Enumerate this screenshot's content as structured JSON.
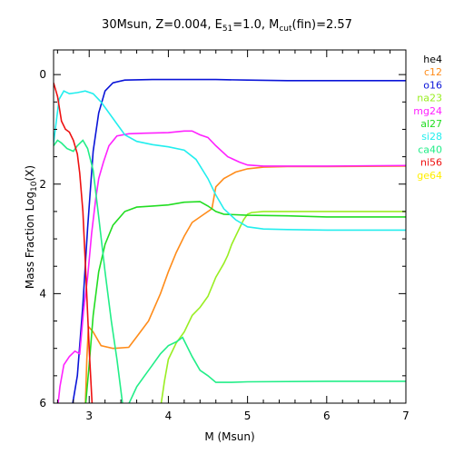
{
  "chart_data": {
    "type": "line",
    "title": {
      "prefix": "30Msun, Z=0.004, E",
      "e_sub": "51",
      "middle": "=1.0, M",
      "m_sub": "cut",
      "suffix": "(fin)=2.57"
    },
    "xlabel": "M (Msun)",
    "ylabel": {
      "prefix": "Mass Fraction Log",
      "sub": "10",
      "suffix": "(X)"
    },
    "xlim": [
      2.55,
      7.0
    ],
    "ylim": [
      -6.0,
      0.45
    ],
    "x_ticks": [
      3,
      4,
      5,
      6,
      7
    ],
    "y_ticks": [
      0,
      -2,
      -4,
      -6
    ],
    "y_tick_labels": [
      "0",
      "2",
      "4",
      "6"
    ],
    "legend_position": "outside-right",
    "series": [
      {
        "name": "he4",
        "color": "#000000",
        "points": []
      },
      {
        "name": "c12",
        "color": "#ff8c1a",
        "points": [
          [
            2.95,
            -6.1
          ],
          [
            2.97,
            -5.2
          ],
          [
            2.99,
            -4.6
          ],
          [
            3.05,
            -4.7
          ],
          [
            3.15,
            -4.95
          ],
          [
            3.3,
            -5.0
          ],
          [
            3.5,
            -4.98
          ],
          [
            3.62,
            -4.75
          ],
          [
            3.75,
            -4.5
          ],
          [
            3.9,
            -4.0
          ],
          [
            4.0,
            -3.6
          ],
          [
            4.1,
            -3.25
          ],
          [
            4.2,
            -2.95
          ],
          [
            4.3,
            -2.7
          ],
          [
            4.45,
            -2.55
          ],
          [
            4.55,
            -2.45
          ],
          [
            4.6,
            -2.05
          ],
          [
            4.7,
            -1.9
          ],
          [
            4.85,
            -1.78
          ],
          [
            5.0,
            -1.72
          ],
          [
            5.2,
            -1.69
          ],
          [
            5.5,
            -1.68
          ],
          [
            6.0,
            -1.68
          ],
          [
            7.0,
            -1.67
          ]
        ]
      },
      {
        "name": "o16",
        "color": "#0a14d8",
        "points": [
          [
            2.78,
            -6.1
          ],
          [
            2.85,
            -5.5
          ],
          [
            2.92,
            -4.2
          ],
          [
            2.98,
            -2.8
          ],
          [
            3.05,
            -1.4
          ],
          [
            3.12,
            -0.7
          ],
          [
            3.2,
            -0.3
          ],
          [
            3.3,
            -0.15
          ],
          [
            3.45,
            -0.1
          ],
          [
            3.8,
            -0.09
          ],
          [
            4.2,
            -0.09
          ],
          [
            4.6,
            -0.09
          ],
          [
            5.0,
            -0.1
          ],
          [
            5.5,
            -0.11
          ],
          [
            6.0,
            -0.11
          ],
          [
            6.5,
            -0.11
          ],
          [
            7.0,
            -0.11
          ]
        ]
      },
      {
        "name": "na23",
        "color": "#99ee22",
        "points": [
          [
            3.9,
            -6.1
          ],
          [
            3.95,
            -5.6
          ],
          [
            4.0,
            -5.2
          ],
          [
            4.1,
            -4.9
          ],
          [
            4.2,
            -4.7
          ],
          [
            4.3,
            -4.4
          ],
          [
            4.4,
            -4.25
          ],
          [
            4.5,
            -4.05
          ],
          [
            4.6,
            -3.7
          ],
          [
            4.7,
            -3.45
          ],
          [
            4.75,
            -3.3
          ],
          [
            4.8,
            -3.1
          ],
          [
            4.85,
            -2.95
          ],
          [
            4.9,
            -2.8
          ],
          [
            4.95,
            -2.65
          ],
          [
            5.0,
            -2.55
          ],
          [
            5.05,
            -2.52
          ],
          [
            5.2,
            -2.5
          ],
          [
            5.5,
            -2.5
          ],
          [
            6.0,
            -2.5
          ],
          [
            7.0,
            -2.5
          ]
        ]
      },
      {
        "name": "mg24",
        "color": "#ff22ff",
        "points": [
          [
            2.6,
            -6.1
          ],
          [
            2.63,
            -5.7
          ],
          [
            2.68,
            -5.3
          ],
          [
            2.75,
            -5.15
          ],
          [
            2.82,
            -5.05
          ],
          [
            2.88,
            -5.1
          ],
          [
            2.93,
            -4.3
          ],
          [
            2.98,
            -3.7
          ],
          [
            3.03,
            -2.9
          ],
          [
            3.08,
            -2.3
          ],
          [
            3.12,
            -1.9
          ],
          [
            3.18,
            -1.6
          ],
          [
            3.25,
            -1.3
          ],
          [
            3.35,
            -1.12
          ],
          [
            3.5,
            -1.08
          ],
          [
            3.7,
            -1.07
          ],
          [
            4.0,
            -1.06
          ],
          [
            4.2,
            -1.03
          ],
          [
            4.3,
            -1.03
          ],
          [
            4.4,
            -1.1
          ],
          [
            4.5,
            -1.15
          ],
          [
            4.6,
            -1.3
          ],
          [
            4.75,
            -1.5
          ],
          [
            4.9,
            -1.6
          ],
          [
            5.0,
            -1.65
          ],
          [
            5.2,
            -1.67
          ],
          [
            6.0,
            -1.67
          ],
          [
            7.0,
            -1.66
          ]
        ]
      },
      {
        "name": "al27",
        "color": "#22dd22",
        "points": [
          [
            2.95,
            -6.1
          ],
          [
            3.0,
            -5.3
          ],
          [
            3.05,
            -4.4
          ],
          [
            3.12,
            -3.6
          ],
          [
            3.2,
            -3.1
          ],
          [
            3.3,
            -2.75
          ],
          [
            3.45,
            -2.5
          ],
          [
            3.6,
            -2.42
          ],
          [
            3.8,
            -2.4
          ],
          [
            4.0,
            -2.38
          ],
          [
            4.2,
            -2.33
          ],
          [
            4.4,
            -2.32
          ],
          [
            4.5,
            -2.4
          ],
          [
            4.6,
            -2.5
          ],
          [
            4.7,
            -2.55
          ],
          [
            5.0,
            -2.57
          ],
          [
            5.5,
            -2.58
          ],
          [
            6.0,
            -2.6
          ],
          [
            7.0,
            -2.6
          ]
        ]
      },
      {
        "name": "si28",
        "color": "#22eeee",
        "points": [
          [
            2.55,
            -1.25
          ],
          [
            2.62,
            -0.45
          ],
          [
            2.68,
            -0.3
          ],
          [
            2.75,
            -0.35
          ],
          [
            2.85,
            -0.33
          ],
          [
            2.95,
            -0.3
          ],
          [
            3.05,
            -0.35
          ],
          [
            3.15,
            -0.5
          ],
          [
            3.3,
            -0.8
          ],
          [
            3.45,
            -1.1
          ],
          [
            3.6,
            -1.22
          ],
          [
            3.8,
            -1.28
          ],
          [
            4.0,
            -1.32
          ],
          [
            4.2,
            -1.38
          ],
          [
            4.35,
            -1.55
          ],
          [
            4.5,
            -1.9
          ],
          [
            4.6,
            -2.2
          ],
          [
            4.7,
            -2.45
          ],
          [
            4.85,
            -2.65
          ],
          [
            5.0,
            -2.78
          ],
          [
            5.2,
            -2.82
          ],
          [
            5.5,
            -2.83
          ],
          [
            6.0,
            -2.84
          ],
          [
            7.0,
            -2.84
          ]
        ]
      },
      {
        "name": "ca40",
        "color": "#22ee88",
        "points": [
          [
            2.55,
            -1.3
          ],
          [
            2.6,
            -1.2
          ],
          [
            2.65,
            -1.25
          ],
          [
            2.72,
            -1.35
          ],
          [
            2.8,
            -1.4
          ],
          [
            2.85,
            -1.3
          ],
          [
            2.92,
            -1.2
          ],
          [
            2.98,
            -1.35
          ],
          [
            3.05,
            -1.75
          ],
          [
            3.12,
            -2.6
          ],
          [
            3.2,
            -3.6
          ],
          [
            3.28,
            -4.5
          ],
          [
            3.35,
            -5.2
          ],
          [
            3.42,
            -6.0
          ],
          [
            3.47,
            -6.1
          ],
          [
            3.52,
            -5.95
          ],
          [
            3.6,
            -5.7
          ],
          [
            3.7,
            -5.5
          ],
          [
            3.8,
            -5.3
          ],
          [
            3.9,
            -5.1
          ],
          [
            4.0,
            -4.95
          ],
          [
            4.1,
            -4.88
          ],
          [
            4.18,
            -4.8
          ],
          [
            4.3,
            -5.15
          ],
          [
            4.4,
            -5.4
          ],
          [
            4.5,
            -5.5
          ],
          [
            4.6,
            -5.62
          ],
          [
            4.8,
            -5.62
          ],
          [
            5.0,
            -5.61
          ],
          [
            6.0,
            -5.6
          ],
          [
            7.0,
            -5.6
          ]
        ]
      },
      {
        "name": "ni56",
        "color": "#ee1111",
        "points": [
          [
            2.55,
            -0.15
          ],
          [
            2.6,
            -0.4
          ],
          [
            2.65,
            -0.85
          ],
          [
            2.7,
            -1.0
          ],
          [
            2.75,
            -1.05
          ],
          [
            2.8,
            -1.2
          ],
          [
            2.85,
            -1.45
          ],
          [
            2.88,
            -1.8
          ],
          [
            2.92,
            -2.5
          ],
          [
            2.96,
            -3.7
          ],
          [
            3.0,
            -5.0
          ],
          [
            3.04,
            -6.1
          ]
        ]
      },
      {
        "name": "ge64",
        "color": "#ffee00",
        "points": []
      }
    ]
  }
}
